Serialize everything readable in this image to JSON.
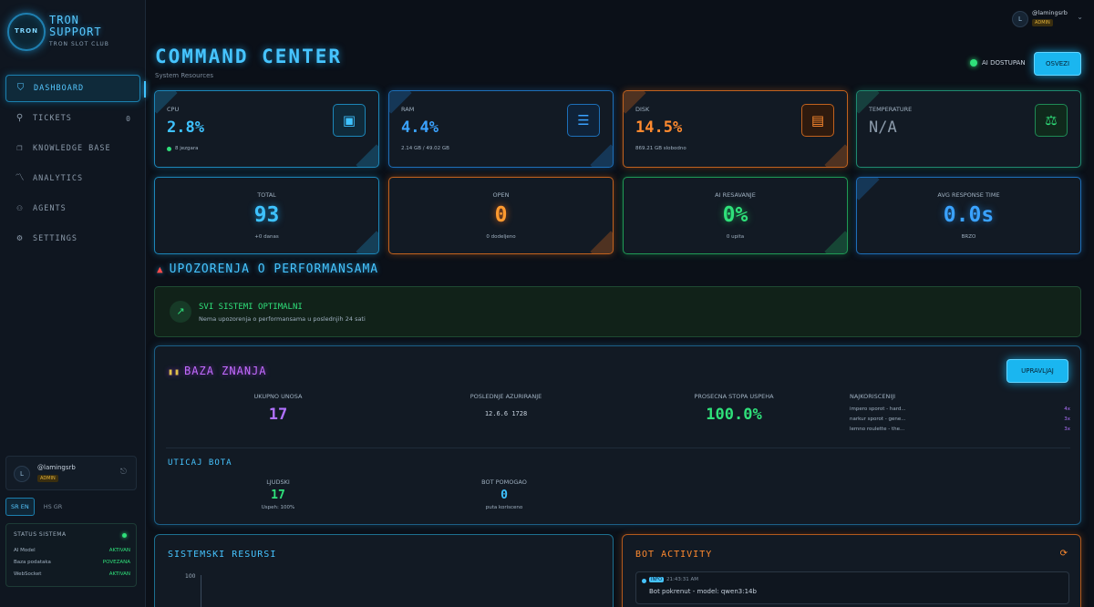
{
  "brand": {
    "logo_text": "TRON",
    "title_line1": "TRON",
    "title_line2": "SUPPORT",
    "subtitle": "TRON SLOT CLUB"
  },
  "nav": [
    {
      "label": "DASHBOARD",
      "icon": "shield-icon",
      "active": true
    },
    {
      "label": "TICKETS",
      "icon": "ticket-icon",
      "count": "0"
    },
    {
      "label": "KNOWLEDGE BASE",
      "icon": "book-icon"
    },
    {
      "label": "ANALYTICS",
      "icon": "chart-icon"
    },
    {
      "label": "AGENTS",
      "icon": "users-icon"
    },
    {
      "label": "SETTINGS",
      "icon": "gear-icon"
    }
  ],
  "user": {
    "initial": "L",
    "name": "@lamingsrb",
    "role": "ADMIN"
  },
  "language": {
    "options": [
      "SR EN",
      "HS GR"
    ],
    "active": "SR EN"
  },
  "system_status": {
    "title": "STATUS SISTEMA",
    "rows": [
      {
        "label": "AI Model",
        "value": "AKTIVAN"
      },
      {
        "label": "Baza podataka",
        "value": "POVEZANA"
      },
      {
        "label": "WebSocket",
        "value": "AKTIVAN"
      }
    ]
  },
  "header": {
    "title": "COMMAND CENTER",
    "subtitle": "System Resources",
    "ai_status": "AI DOSTUPAN",
    "refresh_label": "OSVEZI"
  },
  "resources": [
    {
      "label": "CPU",
      "value": "2.8%",
      "sub": "8 jezgara",
      "icon": "cpu-icon",
      "color": "#3ec2ff"
    },
    {
      "label": "RAM",
      "value": "4.4%",
      "sub": "2.14 GB / 49.02 GB",
      "icon": "database-icon",
      "color": "#3aa2ff"
    },
    {
      "label": "DISK",
      "value": "14.5%",
      "sub": "869.21 GB slobodno",
      "icon": "disk-icon",
      "color": "#ff8a2f"
    },
    {
      "label": "TEMPERATURE",
      "value": "N/A",
      "sub": "",
      "icon": "thermometer-icon",
      "color": "#8b9aaa"
    }
  ],
  "ticket_stats": [
    {
      "label": "TOTAL",
      "value": "93",
      "sub": "+0 danas",
      "color": "#3ec2ff"
    },
    {
      "label": "OPEN",
      "value": "0",
      "sub": "0 dodeljeno",
      "color": "#ff9a2f"
    },
    {
      "label": "AI RESAVANJE",
      "value": "0%",
      "sub": "0 upita",
      "color": "#2fe07a"
    },
    {
      "label": "AVG RESPONSE TIME",
      "value": "0.0s",
      "sub": "BRZO",
      "color": "#3aa2ff"
    }
  ],
  "performance": {
    "heading": "UPOZORENJA O PERFORMANSAMA",
    "status_title": "SVI SISTEMI OPTIMALNI",
    "status_desc": "Nema upozorenja o performansama u poslednjih 24 sati"
  },
  "knowledge_base": {
    "heading": "BAZA ZNANJA",
    "manage_label": "UPRAVLJAJ",
    "total_label": "UKUPNO UNOSA",
    "total_value": "17",
    "updated_label": "POSLEDNJE AZURIRANJE",
    "updated_value": "12.6.6 1728",
    "success_label": "PROSECNA STOPA USPEHA",
    "success_value": "100.0%",
    "most_used_label": "NAJKORISCENIJI",
    "most_used": [
      {
        "title": "impero sporot - hard...",
        "count": "4x"
      },
      {
        "title": "narkur sporot - gene...",
        "count": "3x"
      },
      {
        "title": "lemno roulette - the...",
        "count": "3x"
      }
    ],
    "impact_heading": "UTICAJ BOTA",
    "impact_left_label": "LJUDSKI",
    "impact_left_value": "17",
    "impact_left_sub": "Uspeh: 100%",
    "impact_right_label": "BOT POMOGAO",
    "impact_right_value": "0",
    "impact_right_sub": "puta korisceno"
  },
  "sys_resources_panel": {
    "title": "SISTEMSKI RESURSI",
    "axis_max": "100"
  },
  "bot_activity": {
    "title": "BOT ACTIVITY",
    "log": {
      "level": "INFO",
      "time": "21:43:31 AM",
      "message": "Bot pokrenut - model: qwen3:14b"
    }
  }
}
